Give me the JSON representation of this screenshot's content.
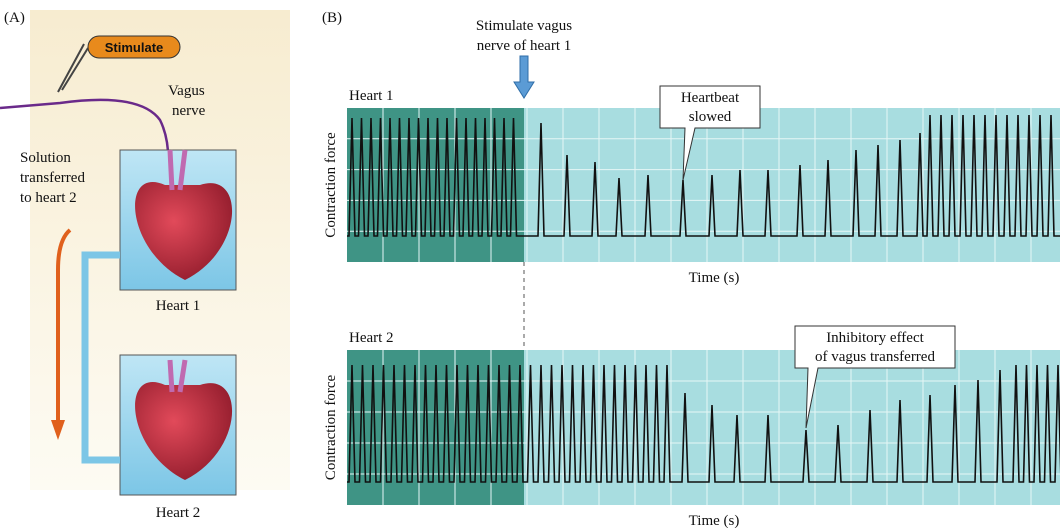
{
  "panel_a": {
    "label": "(A)",
    "stimulate": "Stimulate",
    "vagus_nerve": [
      "Vagus",
      "nerve"
    ],
    "solution": [
      "Solution",
      "transferred",
      "to heart 2"
    ],
    "beakers": [
      "Heart 1",
      "Heart 2"
    ]
  },
  "panel_b": {
    "label": "(B)",
    "stimulus": [
      "Stimulate vagus",
      "nerve of heart 1"
    ],
    "traces": [
      {
        "title": "Heart 1",
        "y_label": "Contraction force",
        "x_label": "Time (s)",
        "annotation": [
          "Heartbeat",
          "slowed"
        ]
      },
      {
        "title": "Heart 2",
        "y_label": "Contraction force",
        "x_label": "Time (s)",
        "annotation": [
          "Inhibitory effect",
          "of vagus transferred"
        ]
      }
    ]
  }
}
